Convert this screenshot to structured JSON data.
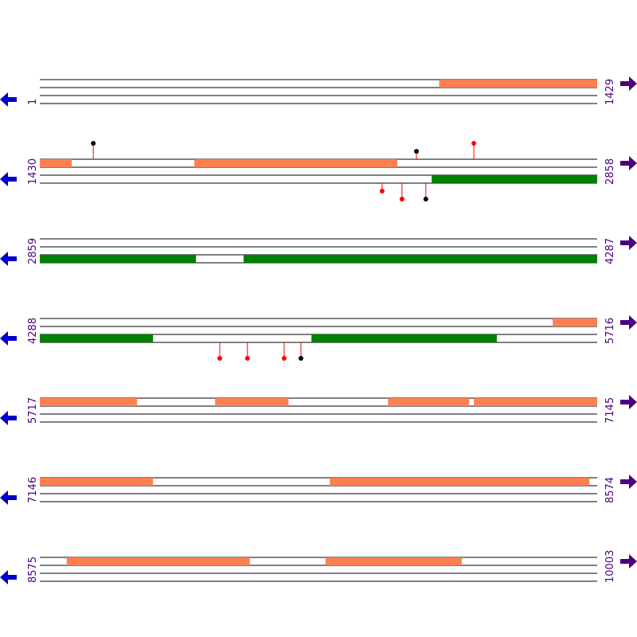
{
  "rows": [
    {
      "start": 1,
      "end": 1429,
      "features": [
        {
          "frame": 0,
          "color": "#ff7f50",
          "from": 1024,
          "to": 1429
        }
      ],
      "sites": []
    },
    {
      "start": 1430,
      "end": 2858,
      "features": [
        {
          "frame": 0,
          "color": "#ff7f50",
          "from": 1430,
          "to": 1512
        },
        {
          "frame": 0,
          "color": "#ff7f50",
          "from": 1826,
          "to": 2346
        },
        {
          "frame": 2,
          "color": "#008000",
          "from": 2434,
          "to": 2858
        }
      ],
      "sites": [
        {
          "pos": 1567,
          "color": "#000000",
          "side": "top",
          "level": 2
        },
        {
          "pos": 2395,
          "color": "#000000",
          "side": "top",
          "level": 1
        },
        {
          "pos": 2542,
          "color": "#ff0000",
          "side": "top",
          "level": 2
        },
        {
          "pos": 2307,
          "color": "#ff0000",
          "side": "bottom",
          "level": 1
        },
        {
          "pos": 2358,
          "color": "#ff0000",
          "side": "bottom",
          "level": 2
        },
        {
          "pos": 2419,
          "color": "#000000",
          "side": "bottom",
          "level": 2
        }
      ]
    },
    {
      "start": 2859,
      "end": 4287,
      "features": [
        {
          "frame": 2,
          "color": "#008000",
          "from": 2859,
          "to": 3259
        },
        {
          "frame": 2,
          "color": "#008000",
          "from": 3381,
          "to": 4287
        }
      ],
      "sites": []
    },
    {
      "start": 4288,
      "end": 5716,
      "features": [
        {
          "frame": 0,
          "color": "#ff7f50",
          "from": 5602,
          "to": 5716
        },
        {
          "frame": 2,
          "color": "#008000",
          "from": 4288,
          "to": 4578
        },
        {
          "frame": 2,
          "color": "#008000",
          "from": 4984,
          "to": 5459
        }
      ],
      "sites": [
        {
          "pos": 4749,
          "color": "#ff0000",
          "side": "bottom",
          "level": 2
        },
        {
          "pos": 4820,
          "color": "#ff0000",
          "side": "bottom",
          "level": 2
        },
        {
          "pos": 4914,
          "color": "#ff0000",
          "side": "bottom",
          "level": 2
        },
        {
          "pos": 4957,
          "color": "#000000",
          "side": "bottom",
          "level": 2
        }
      ]
    },
    {
      "start": 5717,
      "end": 7145,
      "features": [
        {
          "frame": 0,
          "color": "#ff7f50",
          "from": 5717,
          "to": 5966
        },
        {
          "frame": 0,
          "color": "#ff7f50",
          "from": 6166,
          "to": 6354
        },
        {
          "frame": 0,
          "color": "#ff7f50",
          "from": 6609,
          "to": 6817
        },
        {
          "frame": 0,
          "color": "#ff7f50",
          "from": 6829,
          "to": 7145
        }
      ],
      "sites": []
    },
    {
      "start": 7146,
      "end": 8574,
      "features": [
        {
          "frame": 0,
          "color": "#ff7f50",
          "from": 7146,
          "to": 7436
        },
        {
          "frame": 0,
          "color": "#ff7f50",
          "from": 7889,
          "to": 8554
        }
      ],
      "sites": []
    },
    {
      "start": 8575,
      "end": 10003,
      "features": [
        {
          "frame": 0,
          "color": "#ff7f50",
          "from": 8644,
          "to": 9113
        },
        {
          "frame": 0,
          "color": "#ff7f50",
          "from": 9307,
          "to": 9656
        }
      ],
      "sites": []
    }
  ]
}
